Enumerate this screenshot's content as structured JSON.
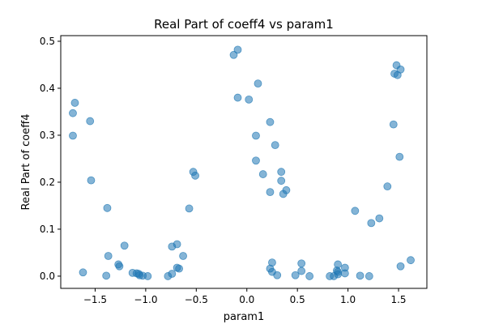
{
  "chart_data": {
    "type": "scatter",
    "title": "Real Part of coeff4 vs param1",
    "xlabel": "param1",
    "ylabel": "Real Part of coeff4",
    "xlim": [
      -1.84,
      1.78
    ],
    "ylim": [
      -0.026,
      0.512
    ],
    "xticks": [
      -1.5,
      -1.0,
      -0.5,
      0.0,
      0.5,
      1.0,
      1.5
    ],
    "xtick_labels": [
      "−1.5",
      "−1.0",
      "−0.5",
      "0.0",
      "0.5",
      "1.0",
      "1.5"
    ],
    "yticks": [
      0.0,
      0.1,
      0.2,
      0.3,
      0.4,
      0.5
    ],
    "ytick_labels": [
      "0.0",
      "0.1",
      "0.2",
      "0.3",
      "0.4",
      "0.5"
    ],
    "grid": false,
    "legend": "none",
    "marker_color": "#1f77b4",
    "marker_alpha": 0.55,
    "series": [
      {
        "points": [
          {
            "x": -1.7,
            "y": 0.369
          },
          {
            "x": -1.72,
            "y": 0.347
          },
          {
            "x": -1.72,
            "y": 0.299
          },
          {
            "x": -1.55,
            "y": 0.33
          },
          {
            "x": -1.54,
            "y": 0.204
          },
          {
            "x": -1.62,
            "y": 0.008
          },
          {
            "x": -1.38,
            "y": 0.145
          },
          {
            "x": -1.37,
            "y": 0.043
          },
          {
            "x": -1.39,
            "y": 0.001
          },
          {
            "x": -1.21,
            "y": 0.065
          },
          {
            "x": -1.27,
            "y": 0.025
          },
          {
            "x": -1.26,
            "y": 0.021
          },
          {
            "x": -1.13,
            "y": 0.007
          },
          {
            "x": -1.09,
            "y": 0.006
          },
          {
            "x": -1.07,
            "y": 0.005
          },
          {
            "x": -1.06,
            "y": 0.002
          },
          {
            "x": -1.03,
            "y": 0.001
          },
          {
            "x": -0.98,
            "y": 0.0
          },
          {
            "x": -0.78,
            "y": 0.0
          },
          {
            "x": -0.74,
            "y": 0.005
          },
          {
            "x": -0.74,
            "y": 0.063
          },
          {
            "x": -0.69,
            "y": 0.068
          },
          {
            "x": -0.69,
            "y": 0.018
          },
          {
            "x": -0.67,
            "y": 0.016
          },
          {
            "x": -0.63,
            "y": 0.043
          },
          {
            "x": -0.57,
            "y": 0.144
          },
          {
            "x": -0.53,
            "y": 0.222
          },
          {
            "x": -0.51,
            "y": 0.214
          },
          {
            "x": -0.13,
            "y": 0.471
          },
          {
            "x": -0.09,
            "y": 0.482
          },
          {
            "x": -0.09,
            "y": 0.38
          },
          {
            "x": 0.02,
            "y": 0.376
          },
          {
            "x": 0.11,
            "y": 0.41
          },
          {
            "x": 0.09,
            "y": 0.299
          },
          {
            "x": 0.09,
            "y": 0.246
          },
          {
            "x": 0.16,
            "y": 0.217
          },
          {
            "x": 0.23,
            "y": 0.328
          },
          {
            "x": 0.23,
            "y": 0.179
          },
          {
            "x": 0.28,
            "y": 0.279
          },
          {
            "x": 0.34,
            "y": 0.222
          },
          {
            "x": 0.34,
            "y": 0.203
          },
          {
            "x": 0.36,
            "y": 0.175
          },
          {
            "x": 0.39,
            "y": 0.183
          },
          {
            "x": 0.25,
            "y": 0.029
          },
          {
            "x": 0.23,
            "y": 0.016
          },
          {
            "x": 0.25,
            "y": 0.009
          },
          {
            "x": 0.3,
            "y": 0.002
          },
          {
            "x": 0.48,
            "y": 0.002
          },
          {
            "x": 0.54,
            "y": 0.027
          },
          {
            "x": 0.54,
            "y": 0.011
          },
          {
            "x": 0.62,
            "y": 0.0
          },
          {
            "x": 0.82,
            "y": 0.0
          },
          {
            "x": 0.86,
            "y": 0.0
          },
          {
            "x": 0.89,
            "y": 0.012
          },
          {
            "x": 0.9,
            "y": 0.025
          },
          {
            "x": 0.9,
            "y": 0.009
          },
          {
            "x": 0.9,
            "y": 0.004
          },
          {
            "x": 0.97,
            "y": 0.018
          },
          {
            "x": 0.97,
            "y": 0.006
          },
          {
            "x": 1.07,
            "y": 0.139
          },
          {
            "x": 1.12,
            "y": 0.001
          },
          {
            "x": 1.21,
            "y": 0.0
          },
          {
            "x": 1.23,
            "y": 0.113
          },
          {
            "x": 1.31,
            "y": 0.123
          },
          {
            "x": 1.39,
            "y": 0.191
          },
          {
            "x": 1.45,
            "y": 0.323
          },
          {
            "x": 1.46,
            "y": 0.431
          },
          {
            "x": 1.48,
            "y": 0.449
          },
          {
            "x": 1.49,
            "y": 0.428
          },
          {
            "x": 1.52,
            "y": 0.44
          },
          {
            "x": 1.51,
            "y": 0.254
          },
          {
            "x": 1.52,
            "y": 0.021
          },
          {
            "x": 1.62,
            "y": 0.034
          }
        ]
      }
    ]
  }
}
